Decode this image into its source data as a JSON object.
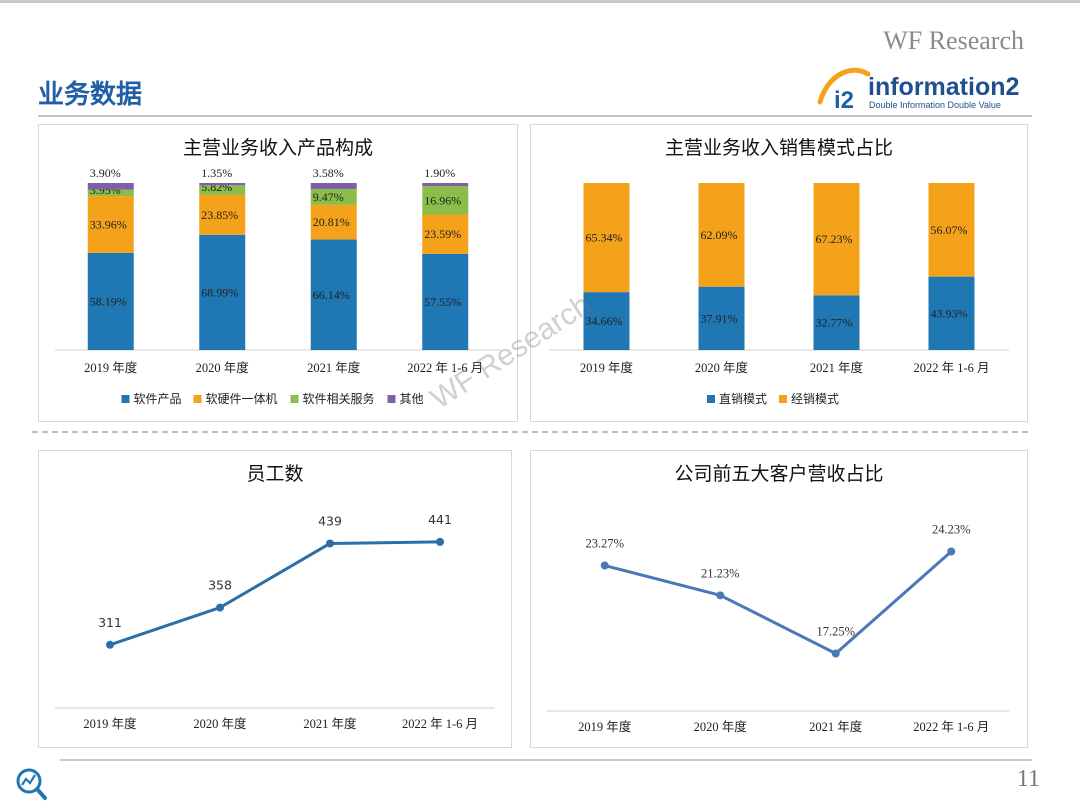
{
  "header": {
    "brand": "WF Research",
    "title": "业务数据",
    "logo": {
      "wordmark": "information2",
      "tagline": "Double Information Double Value"
    }
  },
  "watermark": "WF Research",
  "page_number": "11",
  "colors": {
    "blue": "#1f77b4",
    "orange": "#f5a21b",
    "green": "#8bbd4a",
    "purple": "#7f5fa7",
    "line": "#4a78b8"
  },
  "chart_data": [
    {
      "id": "product-mix",
      "type": "bar",
      "stacked": true,
      "title": "主营业务收入产品构成",
      "categories": [
        "2019 年度",
        "2020 年度",
        "2021 年度",
        "2022 年 1-6 月"
      ],
      "series": [
        {
          "name": "软件产品",
          "color": "#1f77b4",
          "values": [
            58.19,
            68.99,
            66.14,
            57.55
          ],
          "labels": [
            "58.19%",
            "68.99%",
            "66.14%",
            "57.55%"
          ]
        },
        {
          "name": "软硬件一体机",
          "color": "#f5a21b",
          "values": [
            33.96,
            23.85,
            20.81,
            23.59
          ],
          "labels": [
            "33.96%",
            "23.85%",
            "20.81%",
            "23.59%"
          ]
        },
        {
          "name": "软件相关服务",
          "color": "#8bbd4a",
          "values": [
            3.95,
            5.82,
            9.47,
            16.96
          ],
          "labels": [
            "3.95%",
            "5.82%",
            "9.47%",
            "16.96%"
          ]
        },
        {
          "name": "其他",
          "color": "#7f5fa7",
          "values": [
            3.9,
            1.35,
            3.58,
            1.9
          ],
          "labels": [
            "3.90%",
            "1.35%",
            "3.58%",
            "1.90%"
          ]
        }
      ],
      "ylim": [
        0,
        100
      ],
      "legend": "bottom"
    },
    {
      "id": "sales-mode",
      "type": "bar",
      "stacked": true,
      "title": "主营业务收入销售模式占比",
      "categories": [
        "2019 年度",
        "2020 年度",
        "2021 年度",
        "2022 年 1-6 月"
      ],
      "series": [
        {
          "name": "直销模式",
          "color": "#1f77b4",
          "values": [
            34.66,
            37.91,
            32.77,
            43.93
          ],
          "labels": [
            "34.66%",
            "37.91%",
            "32.77%",
            "43.93%"
          ]
        },
        {
          "name": "经销模式",
          "color": "#f5a21b",
          "values": [
            65.34,
            62.09,
            67.23,
            56.07
          ],
          "labels": [
            "65.34%",
            "62.09%",
            "67.23%",
            "56.07%"
          ]
        }
      ],
      "ylim": [
        0,
        100
      ],
      "legend": "bottom"
    },
    {
      "id": "employees",
      "type": "line",
      "title": "员工数",
      "categories": [
        "2019 年度",
        "2020 年度",
        "2021 年度",
        "2022 年 1-6 月"
      ],
      "series": [
        {
          "color": "#2a6fa8",
          "values": [
            311,
            358,
            439,
            441
          ],
          "labels": [
            "311",
            "358",
            "439",
            "441"
          ]
        }
      ],
      "ylim": [
        240,
        480
      ]
    },
    {
      "id": "top5-customers",
      "type": "line",
      "title": "公司前五大客户营收占比",
      "categories": [
        "2019 年度",
        "2020 年度",
        "2021 年度",
        "2022 年 1-6 月"
      ],
      "series": [
        {
          "color": "#4a78b8",
          "values": [
            23.27,
            21.23,
            17.25,
            24.23
          ],
          "labels": [
            "23.27%",
            "21.23%",
            "17.25%",
            "24.23%"
          ]
        }
      ],
      "ylim": [
        14,
        27
      ]
    }
  ]
}
